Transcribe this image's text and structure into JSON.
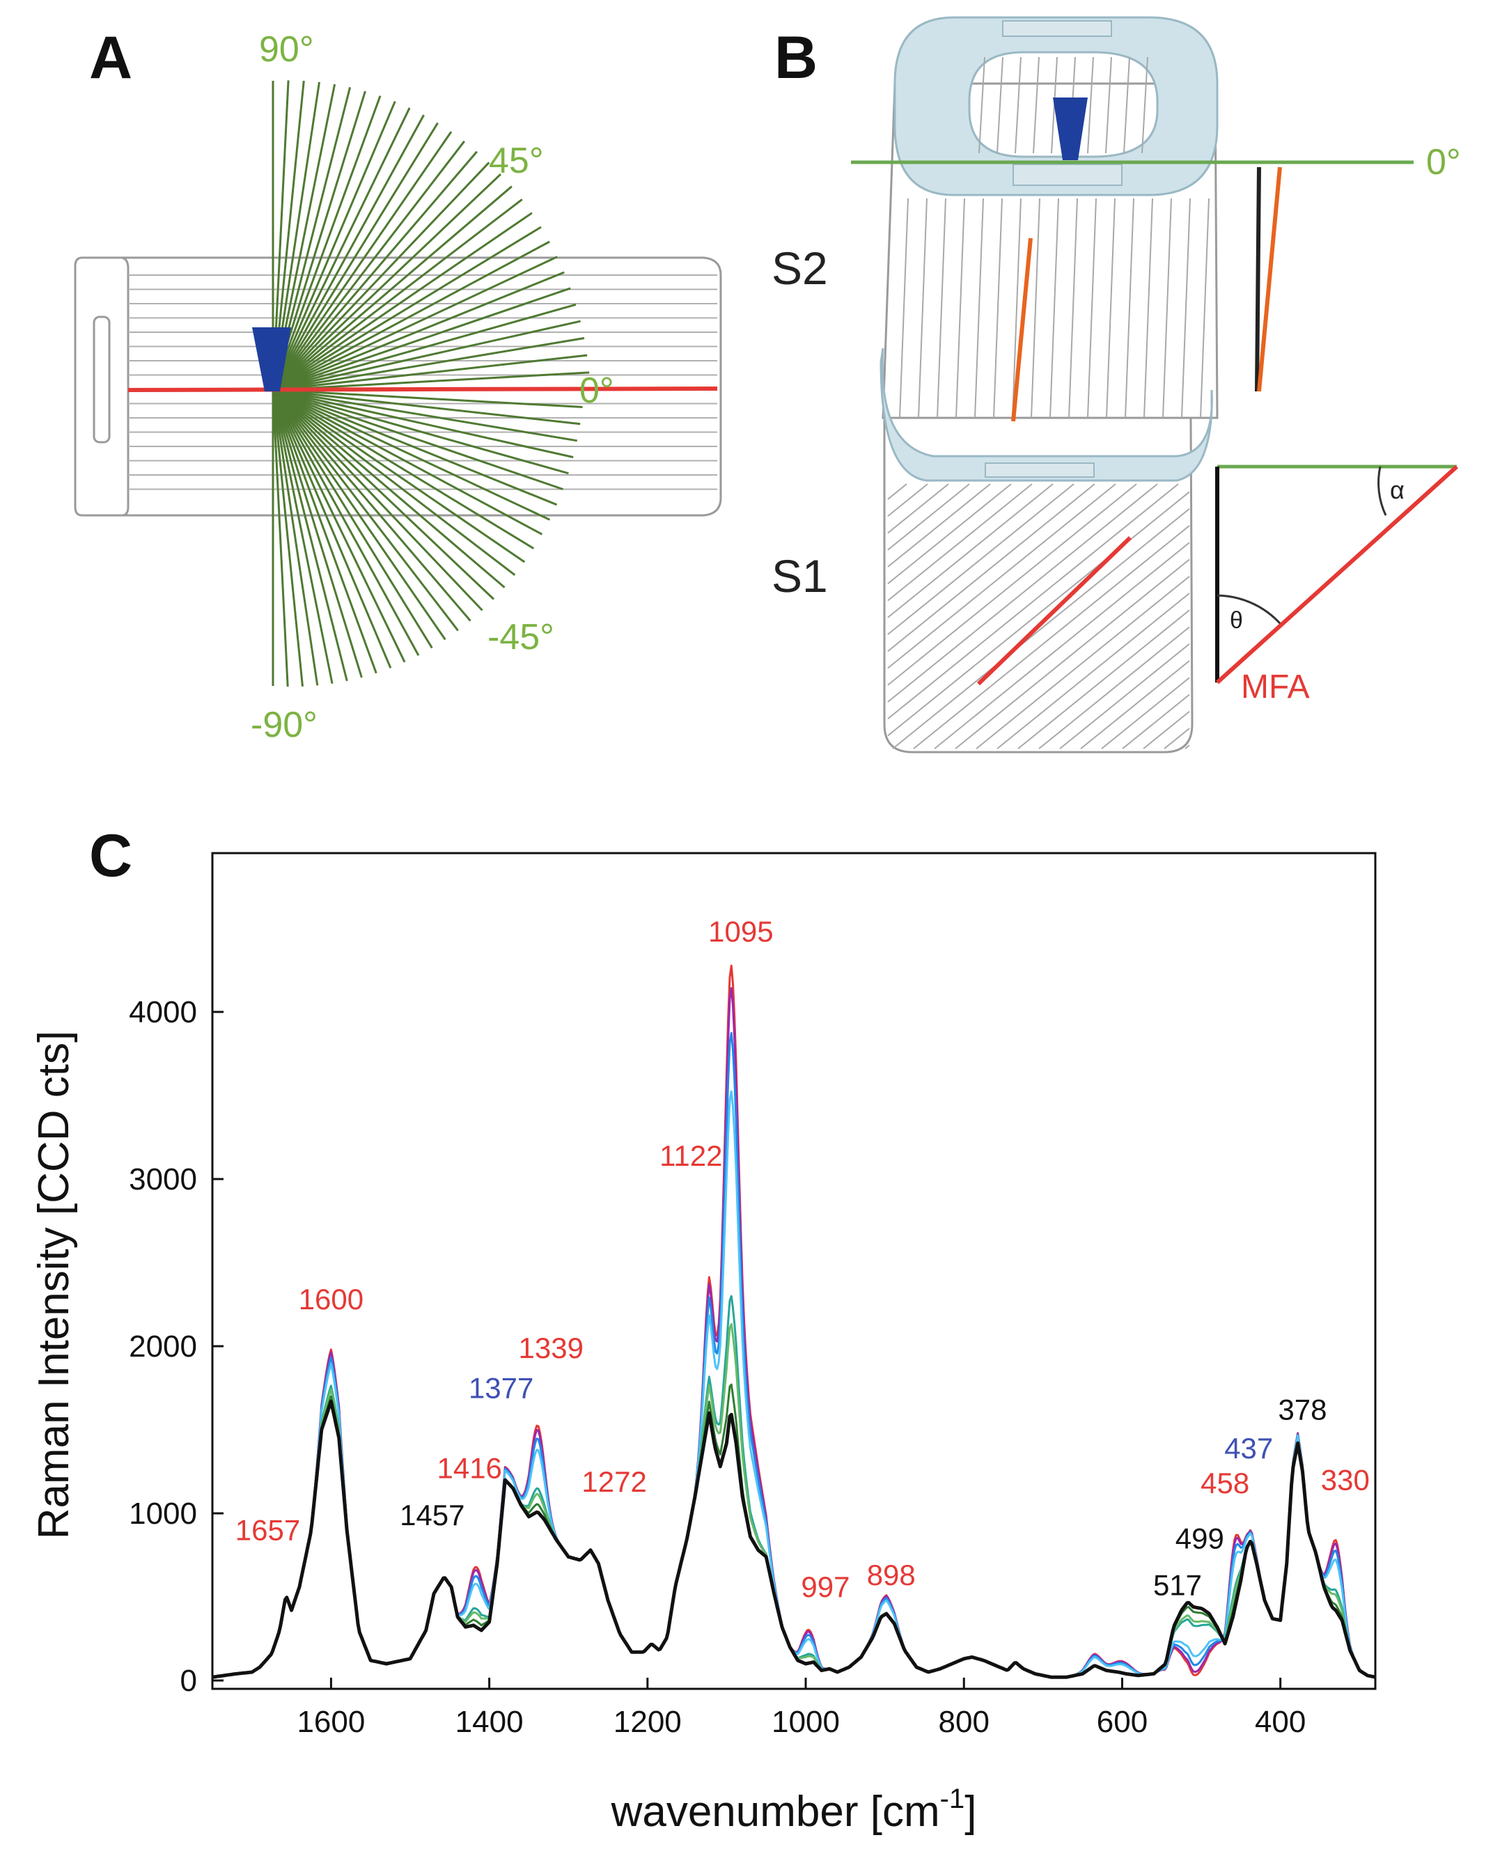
{
  "panel_a": {
    "label": "A",
    "angles": {
      "deg90": "90°",
      "deg45": "45°",
      "deg0": "0°",
      "degm45": "-45°",
      "degm90": "-90°"
    }
  },
  "panel_b": {
    "label": "B",
    "zero_label": "0°",
    "s2_label": "S2",
    "s1_label": "S1",
    "alpha": "α",
    "theta": "θ",
    "mfa_label": "MFA"
  },
  "panel_c": {
    "label": "C"
  },
  "colors": {
    "green_text": "#7cb342",
    "red": "#e53935",
    "orange": "#e8641e",
    "blue_marker": "#1f3f9e",
    "wall_fill": "#cfe2ea",
    "fan_line": "#4f7a32"
  },
  "chart_data": {
    "type": "line",
    "xlabel": "wavenumber [cm",
    "xlabel_sup": "-1",
    "xlabel_end": "]",
    "ylabel": "Raman Intensity [CCD cts]",
    "xlim": [
      1750,
      280
    ],
    "ylim": [
      -50,
      4950
    ],
    "xticks": [
      1600,
      1400,
      1200,
      1000,
      800,
      600,
      400
    ],
    "xtick_labels": [
      "1600",
      "1400",
      "1200",
      "1000",
      "800",
      "600",
      "400"
    ],
    "yticks": [
      0,
      1000,
      2000,
      3000,
      4000
    ],
    "ytick_labels": [
      "0",
      "1000",
      "2000",
      "3000",
      "4000"
    ],
    "baseline": [
      [
        1750,
        20
      ],
      [
        1720,
        40
      ],
      [
        1700,
        50
      ],
      [
        1690,
        80
      ],
      [
        1675,
        160
      ],
      [
        1665,
        300
      ],
      [
        1657,
        510
      ],
      [
        1650,
        420
      ],
      [
        1640,
        560
      ],
      [
        1625,
        900
      ],
      [
        1612,
        1500
      ],
      [
        1600,
        1670
      ],
      [
        1590,
        1450
      ],
      [
        1580,
        900
      ],
      [
        1565,
        300
      ],
      [
        1550,
        120
      ],
      [
        1530,
        100
      ],
      [
        1500,
        130
      ],
      [
        1480,
        300
      ],
      [
        1470,
        520
      ],
      [
        1457,
        620
      ],
      [
        1448,
        560
      ],
      [
        1440,
        380
      ],
      [
        1430,
        320
      ],
      [
        1420,
        330
      ],
      [
        1410,
        300
      ],
      [
        1400,
        350
      ],
      [
        1390,
        700
      ],
      [
        1380,
        1200
      ],
      [
        1370,
        1150
      ],
      [
        1360,
        1050
      ],
      [
        1350,
        980
      ],
      [
        1339,
        1010
      ],
      [
        1330,
        960
      ],
      [
        1315,
        840
      ],
      [
        1300,
        740
      ],
      [
        1285,
        720
      ],
      [
        1272,
        780
      ],
      [
        1262,
        700
      ],
      [
        1250,
        480
      ],
      [
        1235,
        280
      ],
      [
        1220,
        170
      ],
      [
        1205,
        170
      ],
      [
        1195,
        220
      ],
      [
        1185,
        180
      ],
      [
        1175,
        260
      ],
      [
        1165,
        560
      ],
      [
        1150,
        850
      ],
      [
        1140,
        1100
      ],
      [
        1130,
        1380
      ],
      [
        1122,
        1600
      ],
      [
        1115,
        1400
      ],
      [
        1108,
        1280
      ],
      [
        1100,
        1420
      ],
      [
        1095,
        1620
      ],
      [
        1088,
        1420
      ],
      [
        1080,
        1100
      ],
      [
        1070,
        860
      ],
      [
        1060,
        780
      ],
      [
        1050,
        740
      ],
      [
        1040,
        520
      ],
      [
        1030,
        320
      ],
      [
        1020,
        200
      ],
      [
        1010,
        120
      ],
      [
        1000,
        100
      ],
      [
        990,
        110
      ],
      [
        980,
        60
      ],
      [
        970,
        70
      ],
      [
        960,
        50
      ],
      [
        945,
        80
      ],
      [
        930,
        140
      ],
      [
        915,
        260
      ],
      [
        905,
        380
      ],
      [
        898,
        400
      ],
      [
        888,
        340
      ],
      [
        875,
        180
      ],
      [
        860,
        80
      ],
      [
        845,
        50
      ],
      [
        830,
        70
      ],
      [
        815,
        100
      ],
      [
        800,
        130
      ],
      [
        790,
        140
      ],
      [
        775,
        120
      ],
      [
        760,
        90
      ],
      [
        745,
        60
      ],
      [
        735,
        110
      ],
      [
        725,
        70
      ],
      [
        710,
        40
      ],
      [
        690,
        20
      ],
      [
        670,
        20
      ],
      [
        650,
        40
      ],
      [
        635,
        90
      ],
      [
        620,
        60
      ],
      [
        605,
        50
      ],
      [
        595,
        40
      ],
      [
        580,
        30
      ],
      [
        560,
        40
      ],
      [
        545,
        100
      ],
      [
        535,
        320
      ],
      [
        525,
        420
      ],
      [
        517,
        470
      ],
      [
        510,
        440
      ],
      [
        499,
        430
      ],
      [
        490,
        400
      ],
      [
        480,
        320
      ],
      [
        470,
        220
      ],
      [
        460,
        380
      ],
      [
        450,
        600
      ],
      [
        443,
        790
      ],
      [
        437,
        840
      ],
      [
        430,
        700
      ],
      [
        420,
        480
      ],
      [
        410,
        370
      ],
      [
        400,
        360
      ],
      [
        392,
        700
      ],
      [
        385,
        1250
      ],
      [
        378,
        1420
      ],
      [
        372,
        1250
      ],
      [
        365,
        900
      ],
      [
        355,
        760
      ],
      [
        345,
        560
      ],
      [
        335,
        440
      ],
      [
        330,
        420
      ],
      [
        322,
        360
      ],
      [
        312,
        180
      ],
      [
        300,
        60
      ],
      [
        290,
        30
      ],
      [
        280,
        20
      ]
    ],
    "series": [
      {
        "name": "spectrum-1",
        "color": "#e53935",
        "scale": 1.0,
        "pattern": "parallel"
      },
      {
        "name": "spectrum-2",
        "color": "#9c27b0",
        "scale": 0.95,
        "pattern": "parallel"
      },
      {
        "name": "spectrum-3",
        "color": "#1e88e5",
        "scale": 0.85,
        "pattern": "parallel"
      },
      {
        "name": "spectrum-4",
        "color": "#4fc3f7",
        "scale": 0.72,
        "pattern": "parallel"
      },
      {
        "name": "spectrum-5",
        "color": "#26a69a",
        "scale": 0.55,
        "pattern": "mid"
      },
      {
        "name": "spectrum-6",
        "color": "#66bb6a",
        "scale": 0.42,
        "pattern": "mid"
      },
      {
        "name": "spectrum-7",
        "color": "#2e7d32",
        "scale": 0.3,
        "pattern": "perpendicular"
      },
      {
        "name": "spectrum-8",
        "color": "#111111",
        "scale": 0.0,
        "pattern": "perpendicular"
      }
    ],
    "peak_labels": [
      {
        "label": "1600",
        "x": 1600,
        "y": 2220,
        "color": "#e53935"
      },
      {
        "label": "1657",
        "x": 1680,
        "y": 840,
        "color": "#e53935"
      },
      {
        "label": "1457",
        "x": 1472,
        "y": 930,
        "color": "#111111"
      },
      {
        "label": "1416",
        "x": 1425,
        "y": 1210,
        "color": "#e53935"
      },
      {
        "label": "1377",
        "x": 1385,
        "y": 1690,
        "color": "#3f51b5"
      },
      {
        "label": "1339",
        "x": 1322,
        "y": 1930,
        "color": "#e53935"
      },
      {
        "label": "1272",
        "x": 1242,
        "y": 1130,
        "color": "#e53935"
      },
      {
        "label": "1122",
        "x": 1145,
        "y": 3080,
        "color": "#e53935"
      },
      {
        "label": "1095",
        "x": 1082,
        "y": 4420,
        "color": "#e53935"
      },
      {
        "label": "997",
        "x": 975,
        "y": 500,
        "color": "#e53935"
      },
      {
        "label": "898",
        "x": 892,
        "y": 570,
        "color": "#e53935"
      },
      {
        "label": "517",
        "x": 530,
        "y": 510,
        "color": "#111111"
      },
      {
        "label": "499",
        "x": 502,
        "y": 790,
        "color": "#111111"
      },
      {
        "label": "458",
        "x": 470,
        "y": 1120,
        "color": "#e53935"
      },
      {
        "label": "437",
        "x": 440,
        "y": 1330,
        "color": "#3f51b5"
      },
      {
        "label": "378",
        "x": 372,
        "y": 1560,
        "color": "#111111"
      },
      {
        "label": "330",
        "x": 318,
        "y": 1140,
        "color": "#e53935"
      }
    ]
  }
}
